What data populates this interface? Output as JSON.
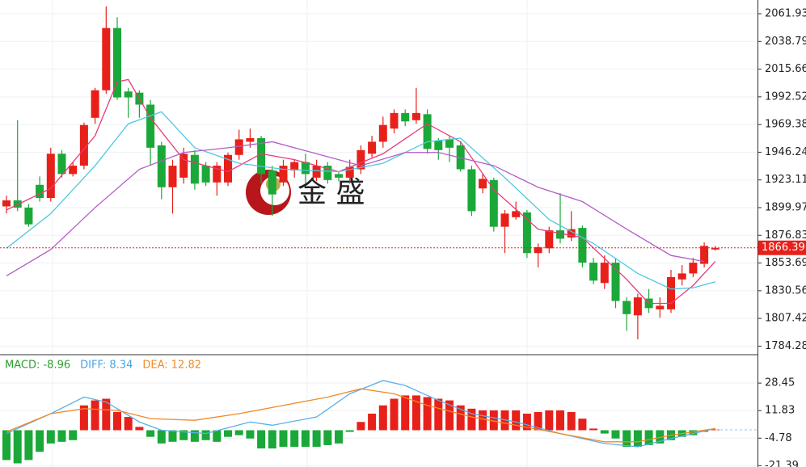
{
  "chart_data": [
    {
      "type": "candlestick",
      "up_color": "#e8201a",
      "down_color": "#1aa839",
      "open": [
        1901,
        1906,
        1900,
        1919,
        1908,
        1945,
        1928,
        1935,
        1975,
        1998,
        2050,
        1997,
        1996,
        1986,
        1952,
        1917,
        1925,
        1944,
        1935,
        1921,
        1921,
        1944,
        1955,
        1958,
        1931,
        1921,
        1931,
        1938,
        1925,
        1935,
        1928,
        1925,
        1932,
        1945,
        1955,
        1966,
        1979,
        1973,
        1978,
        1956,
        1957,
        1952,
        1932,
        1916,
        1923,
        1884,
        1892,
        1896,
        1862,
        1866,
        1881,
        1875,
        1883,
        1854,
        1837,
        1854,
        1822,
        1810,
        1824,
        1815,
        1815,
        1840,
        1845,
        1853,
        1865
      ],
      "high": [
        1910,
        1973,
        1903,
        1926,
        1950,
        1948,
        1938,
        1971,
        2000,
        2068,
        2059,
        2000,
        1998,
        1990,
        1955,
        1940,
        1950,
        1948,
        1938,
        1938,
        1946,
        1965,
        1966,
        1960,
        1935,
        1940,
        1940,
        1945,
        1940,
        1938,
        1930,
        1940,
        1952,
        1960,
        1976,
        1982,
        1982,
        2000,
        1982,
        1958,
        1960,
        1955,
        1935,
        1928,
        1925,
        1898,
        1905,
        1898,
        1870,
        1884,
        1912,
        1897,
        1885,
        1858,
        1860,
        1858,
        1825,
        1828,
        1832,
        1825,
        1848,
        1852,
        1858,
        1871,
        1868
      ],
      "low": [
        1895,
        1897,
        1884,
        1905,
        1905,
        1925,
        1926,
        1932,
        1970,
        1995,
        1990,
        1975,
        1975,
        1935,
        1907,
        1895,
        1920,
        1915,
        1918,
        1910,
        1918,
        1940,
        1950,
        1920,
        1893,
        1918,
        1925,
        1920,
        1922,
        1920,
        1922,
        1920,
        1928,
        1942,
        1950,
        1962,
        1968,
        1970,
        1945,
        1940,
        1938,
        1930,
        1893,
        1912,
        1880,
        1862,
        1890,
        1858,
        1850,
        1862,
        1870,
        1872,
        1850,
        1836,
        1832,
        1816,
        1797,
        1790,
        1812,
        1808,
        1812,
        1835,
        1842,
        1850,
        1864
      ],
      "close": [
        1906,
        1900,
        1886,
        1908,
        1945,
        1928,
        1935,
        1969,
        1998,
        2050,
        1992,
        1992,
        1986,
        1950,
        1917,
        1935,
        1945,
        1920,
        1921,
        1935,
        1944,
        1957,
        1958,
        1928,
        1911,
        1935,
        1938,
        1928,
        1935,
        1923,
        1925,
        1934,
        1948,
        1955,
        1969,
        1979,
        1972,
        1979,
        1949,
        1948,
        1950,
        1932,
        1897,
        1924,
        1884,
        1895,
        1897,
        1862,
        1867,
        1881,
        1874,
        1882,
        1854,
        1839,
        1854,
        1822,
        1811,
        1825,
        1816,
        1818,
        1842,
        1845,
        1854,
        1868,
        1866.39
      ],
      "ma_lines": [
        {
          "color": "#e83a7a",
          "x": [
            0,
            4,
            8,
            10,
            11,
            13,
            16,
            20,
            23,
            26,
            30,
            34,
            38,
            41,
            44,
            48,
            52,
            56,
            58,
            60,
            62,
            64
          ],
          "values": [
            1898,
            1916,
            1960,
            2005,
            2007,
            1975,
            1940,
            1930,
            1945,
            1940,
            1930,
            1945,
            1970,
            1955,
            1915,
            1882,
            1875,
            1840,
            1820,
            1820,
            1835,
            1855
          ]
        },
        {
          "color": "#4fc8e0",
          "x": [
            0,
            4,
            8,
            11,
            14,
            17,
            21,
            25,
            30,
            34,
            38,
            41,
            45,
            49,
            53,
            57,
            60,
            62,
            64
          ],
          "values": [
            1866,
            1895,
            1935,
            1970,
            1980,
            1950,
            1937,
            1932,
            1930,
            1937,
            1955,
            1958,
            1925,
            1890,
            1870,
            1845,
            1832,
            1833,
            1838
          ]
        },
        {
          "color": "#b45cc6",
          "x": [
            0,
            4,
            8,
            12,
            16,
            20,
            24,
            28,
            32,
            36,
            39,
            44,
            48,
            52,
            56,
            60,
            63
          ],
          "values": [
            1843,
            1865,
            1900,
            1932,
            1946,
            1950,
            1955,
            1945,
            1935,
            1946,
            1946,
            1935,
            1917,
            1905,
            1882,
            1860,
            1855
          ]
        }
      ],
      "last_price": 1866.39,
      "ylim": [
        1777.8,
        2073.4
      ],
      "yticks": [
        2061.93,
        2038.79,
        2015.66,
        1992.52,
        1969.38,
        1946.24,
        1923.11,
        1899.97,
        1876.83,
        1853.69,
        1830.56,
        1807.42,
        1784.28
      ],
      "watermark": "金 盛"
    },
    {
      "type": "macd",
      "legend": [
        {
          "text": "MACD: -8.96",
          "color": "#2aa02a"
        },
        {
          "text": "DIFF: 8.34",
          "color": "#4aa3e0"
        },
        {
          "text": "DEA: 12.82",
          "color": "#f08a24"
        }
      ],
      "histogram": [
        -18,
        -20,
        -18,
        -13,
        -8,
        -7,
        -6,
        15,
        18,
        19,
        11,
        8,
        2,
        -4,
        -8,
        -7,
        -6,
        -7,
        -6,
        -7,
        -4,
        -3,
        -5,
        -11,
        -11,
        -10,
        -10,
        -10,
        -10,
        -9,
        -8,
        -1,
        5,
        10,
        15,
        19,
        21,
        21,
        20,
        19,
        18,
        15,
        13,
        12,
        12,
        12,
        12,
        10,
        11,
        12,
        12,
        11,
        7,
        1,
        -2,
        -5,
        -10,
        -10,
        -9,
        -8,
        -6,
        -4,
        -3,
        -1,
        0.5
      ],
      "diff": {
        "color": "#5aaee8",
        "x": [
          0,
          4,
          7,
          9,
          12,
          14,
          18,
          22,
          24,
          28,
          31,
          34,
          36,
          39,
          42,
          46,
          50,
          54,
          57,
          60,
          64
        ],
        "values": [
          -2,
          10,
          20,
          17,
          5,
          0,
          -2,
          5,
          3,
          8,
          22,
          30,
          27,
          18,
          10,
          5,
          -2,
          -8,
          -10,
          -5,
          1
        ]
      },
      "dea": {
        "color": "#f08a24",
        "x": [
          0,
          4,
          7,
          10,
          13,
          17,
          21,
          25,
          29,
          32,
          35,
          38,
          42,
          46,
          50,
          54,
          57,
          60,
          64
        ],
        "values": [
          -1,
          10,
          13,
          12,
          7,
          6,
          10,
          15,
          20,
          25,
          22,
          15,
          8,
          3,
          -2,
          -7,
          -7,
          -3,
          1
        ]
      },
      "ylim": [
        -22.2,
        45.1
      ],
      "yticks": [
        28.45,
        11.83,
        -4.78,
        -21.39
      ]
    }
  ]
}
